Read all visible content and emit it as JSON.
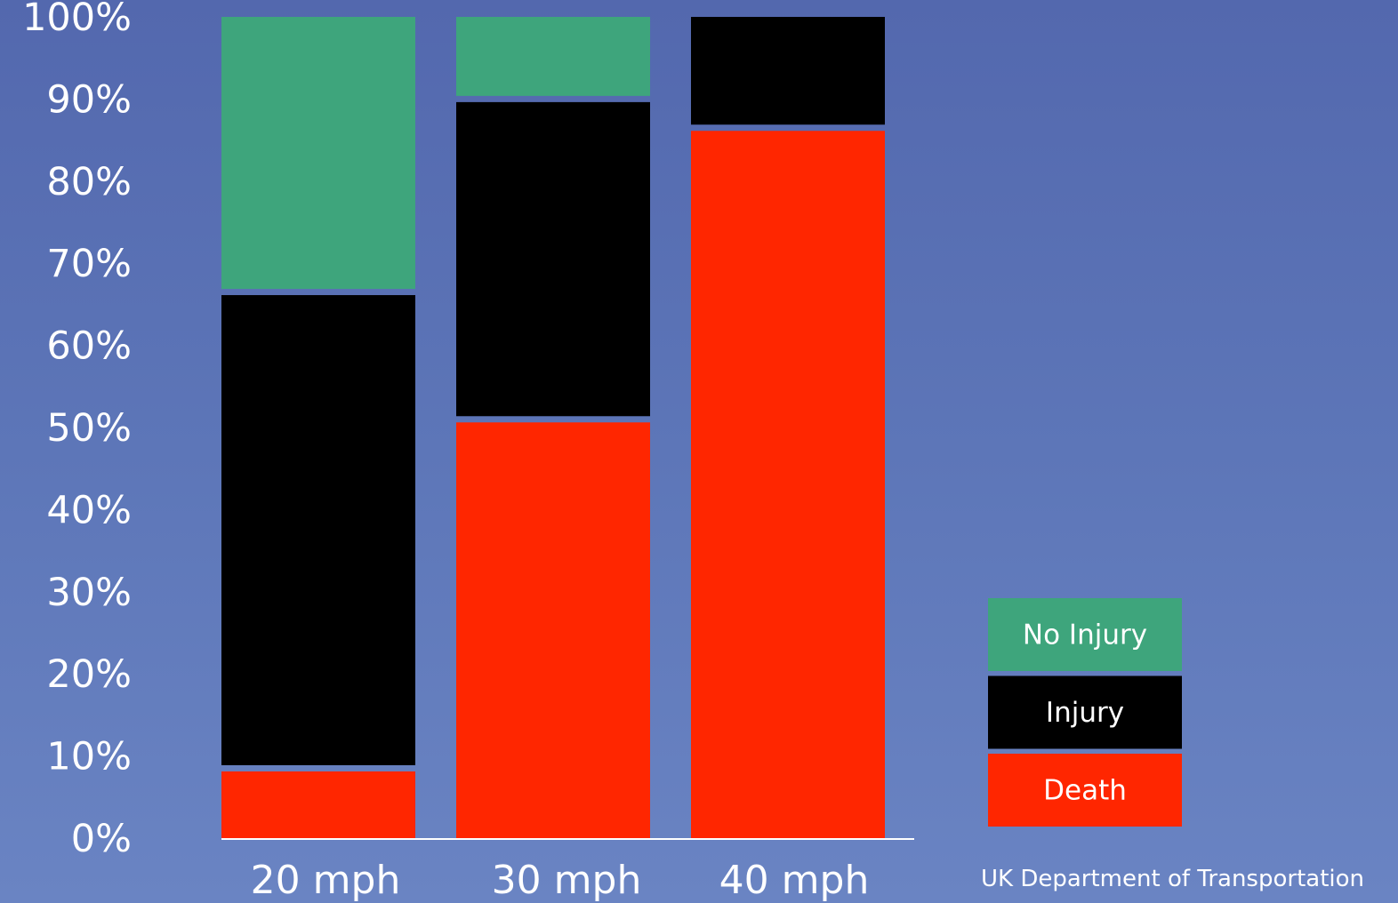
{
  "chart_data": {
    "type": "bar",
    "stacked": true,
    "categories": [
      "20 mph",
      "30 mph",
      "40 mph"
    ],
    "series": [
      {
        "name": "Death",
        "values": [
          8.5,
          51,
          86.5
        ],
        "color": "#ff2600"
      },
      {
        "name": "Injury",
        "values": [
          58,
          39,
          13.5
        ],
        "color": "#000000"
      },
      {
        "name": "No Injury",
        "values": [
          33.5,
          10,
          0
        ],
        "color": "#3ea57c"
      }
    ],
    "ylim": [
      0,
      100
    ],
    "yticks": [
      "0%",
      "10%",
      "20%",
      "30%",
      "40%",
      "50%",
      "60%",
      "70%",
      "80%",
      "90%",
      "100%"
    ],
    "legend_position": "bottom-right",
    "legend_order": [
      "No Injury",
      "Injury",
      "Death"
    ],
    "grid": false
  },
  "source_text": "UK Department of Transportation"
}
